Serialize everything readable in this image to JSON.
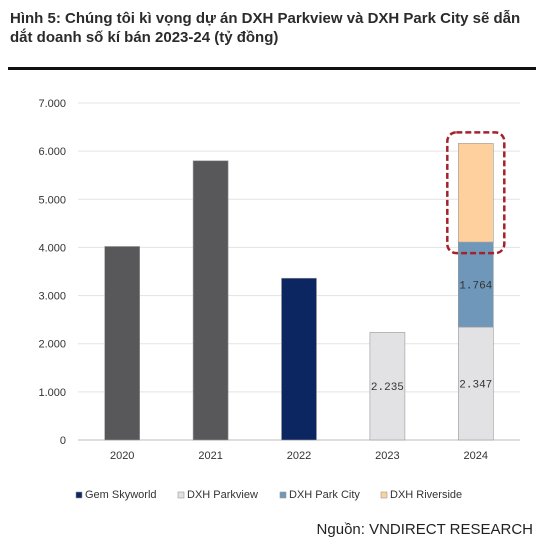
{
  "title": "Hình 5: Chúng tôi kì vọng dự án DXH Parkview và DXH Park City sẽ dẫn dắt doanh số kí bán 2023-24 (tỷ đồng)",
  "source": "Nguồn: VNDIRECT RESEARCH",
  "chart_data": {
    "type": "bar",
    "stacked": true,
    "categories": [
      "2020",
      "2021",
      "2022",
      "2023",
      "2024"
    ],
    "y_ticks": [
      "0",
      "1.000",
      "2.000",
      "3.000",
      "4.000",
      "5.000",
      "6.000",
      "7.000"
    ],
    "ylim": [
      0,
      7000
    ],
    "grid": true,
    "legend_position": "bottom",
    "series": [
      {
        "name": "",
        "color": "#58585b",
        "values": [
          4020,
          5800,
          0,
          0,
          0
        ],
        "labels": [
          "",
          "",
          "",
          "",
          ""
        ]
      },
      {
        "name": "Gem Skyworld",
        "color": "#0b2660",
        "values": [
          0,
          0,
          3360,
          0,
          0
        ],
        "labels": [
          "",
          "",
          "",
          "",
          ""
        ]
      },
      {
        "name": "DXH Parkview",
        "color": "#e2e2e4",
        "values": [
          0,
          0,
          0,
          2235,
          2347
        ],
        "labels": [
          "",
          "",
          "",
          "2.235",
          "2.347"
        ]
      },
      {
        "name": "DXH Park City",
        "color": "#6f97ba",
        "values": [
          0,
          0,
          0,
          0,
          1764
        ],
        "labels": [
          "",
          "",
          "",
          "",
          "1.764"
        ]
      },
      {
        "name": "DXH Riverside",
        "color": "#fdd09e",
        "values": [
          0,
          0,
          0,
          0,
          2050
        ],
        "labels": [
          "",
          "",
          "",
          "",
          ""
        ]
      }
    ],
    "legend": [
      {
        "name": "Gem Skyworld",
        "color": "#0b2660"
      },
      {
        "name": "DXH Parkview",
        "color": "#e2e2e4"
      },
      {
        "name": "DXH Park City",
        "color": "#6f97ba"
      },
      {
        "name": "DXH Riverside",
        "color": "#fdd09e"
      }
    ],
    "highlight": {
      "category": "2024",
      "series": "DXH Riverside",
      "color": "#a3232b"
    }
  }
}
